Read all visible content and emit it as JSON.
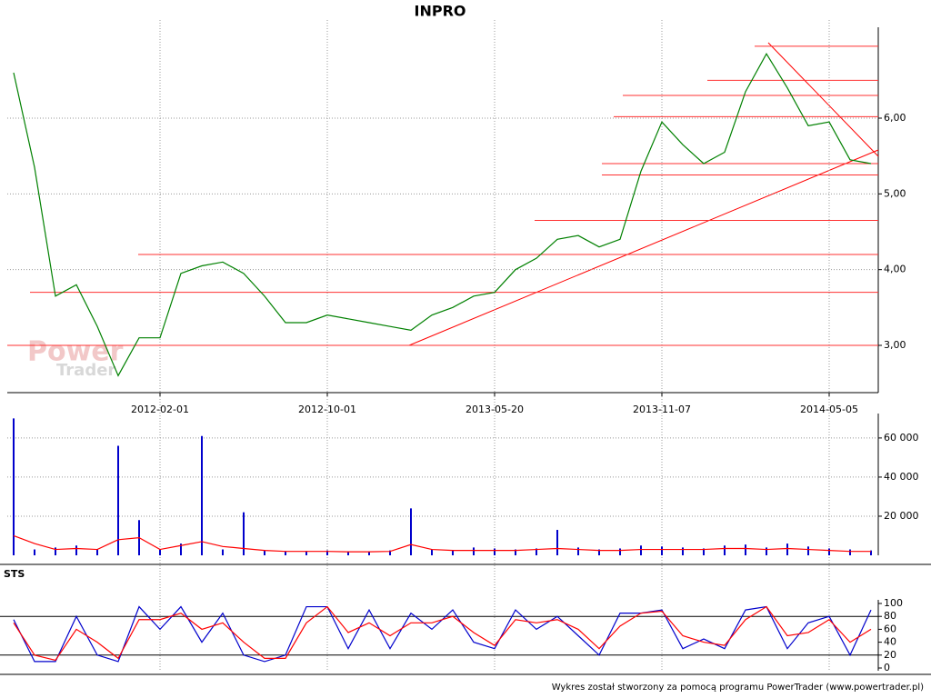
{
  "chart_data": [
    {
      "type": "line",
      "title": "INPRO",
      "categories": [
        null,
        null,
        null,
        null,
        null,
        null,
        null,
        "2012-02-01",
        null,
        null,
        null,
        null,
        null,
        null,
        null,
        "2012-10-01",
        null,
        null,
        null,
        null,
        null,
        null,
        null,
        "2013-05-20",
        null,
        null,
        null,
        null,
        null,
        null,
        null,
        "2013-11-07",
        null,
        null,
        null,
        null,
        null,
        null,
        null,
        "2014-05-05",
        null,
        null
      ],
      "series": [
        {
          "color": "#008000",
          "values": [
            6.6,
            5.35,
            3.65,
            3.8,
            3.25,
            2.6,
            3.1,
            3.1,
            3.95,
            4.05,
            4.1,
            3.95,
            3.65,
            3.3,
            3.3,
            3.4,
            3.35,
            3.3,
            3.25,
            3.2,
            3.4,
            3.5,
            3.65,
            3.7,
            4.0,
            4.15,
            4.4,
            4.45,
            4.3,
            4.4,
            5.3,
            5.95,
            5.65,
            5.4,
            5.55,
            6.35,
            6.85,
            6.4,
            5.9,
            5.95,
            5.45,
            5.4
          ]
        }
      ],
      "ylim": [
        2.4,
        7.2
      ],
      "yticks": [
        {
          "value": 3,
          "label": "3,00"
        },
        {
          "value": 4,
          "label": "4,00"
        },
        {
          "value": 5,
          "label": "5,00"
        },
        {
          "value": 6,
          "label": "6,00"
        }
      ],
      "hlines": {
        "color": "#ff3030",
        "values": [
          6.95,
          6.5,
          6.3,
          6.02,
          5.4,
          5.25,
          4.65,
          4.2,
          3.7,
          3.0
        ]
      },
      "grid": true
    },
    {
      "type": "bar",
      "series": [
        {
          "type": "bar",
          "color": "#0000cc",
          "values": [
            70000,
            3000,
            4000,
            5000,
            3000,
            56000,
            18000,
            3000,
            6000,
            61000,
            3000,
            22000,
            2500,
            2000,
            2000,
            2500,
            2000,
            2000,
            2500,
            24000,
            3000,
            2500,
            4000,
            3500,
            3000,
            3500,
            13000,
            4000,
            3000,
            3500,
            5000,
            4500,
            4000,
            3500,
            5000,
            5500,
            4000,
            6000,
            4500,
            3500,
            3000,
            2500
          ]
        },
        {
          "type": "line",
          "color": "#ff0000",
          "values": [
            10000,
            6000,
            3000,
            3500,
            3000,
            8000,
            9000,
            3000,
            5000,
            7000,
            4500,
            3500,
            2500,
            2000,
            2000,
            2000,
            1800,
            1800,
            2000,
            5500,
            3000,
            2500,
            2500,
            2500,
            2500,
            3000,
            3500,
            3000,
            2500,
            2500,
            3000,
            3000,
            3000,
            3000,
            3500,
            3500,
            3000,
            3500,
            3000,
            2500,
            2000,
            2000
          ]
        }
      ],
      "ylim": [
        0,
        72500
      ],
      "yticks": [
        {
          "value": 20000,
          "label": "20 000"
        },
        {
          "value": 40000,
          "label": "40 000"
        },
        {
          "value": 60000,
          "label": "60 000"
        }
      ],
      "grid": true
    },
    {
      "type": "line",
      "title": "STS",
      "series": [
        {
          "color": "#0000cc",
          "values": [
            75,
            10,
            10,
            80,
            20,
            10,
            95,
            60,
            95,
            40,
            85,
            20,
            10,
            20,
            95,
            95,
            30,
            90,
            30,
            85,
            60,
            90,
            40,
            30,
            90,
            60,
            80,
            50,
            20,
            85,
            85,
            90,
            30,
            45,
            30,
            90,
            95,
            30,
            70,
            80,
            20,
            90
          ]
        },
        {
          "color": "#ff0000",
          "values": [
            70,
            20,
            12,
            60,
            40,
            15,
            75,
            75,
            85,
            60,
            70,
            40,
            15,
            15,
            70,
            95,
            55,
            70,
            50,
            70,
            70,
            80,
            55,
            35,
            75,
            70,
            75,
            60,
            30,
            65,
            85,
            88,
            50,
            40,
            35,
            75,
            95,
            50,
            55,
            75,
            40,
            60
          ]
        }
      ],
      "ylim": [
        0,
        100
      ],
      "yticks": [
        0,
        20,
        40,
        60,
        80,
        100
      ],
      "levels": [
        20,
        80
      ],
      "grid": true
    }
  ],
  "watermark": [
    "Power",
    "Trader"
  ],
  "footer": "Wykres został stworzony za pomocą programu PowerTrader (www.powertrader.pl)"
}
